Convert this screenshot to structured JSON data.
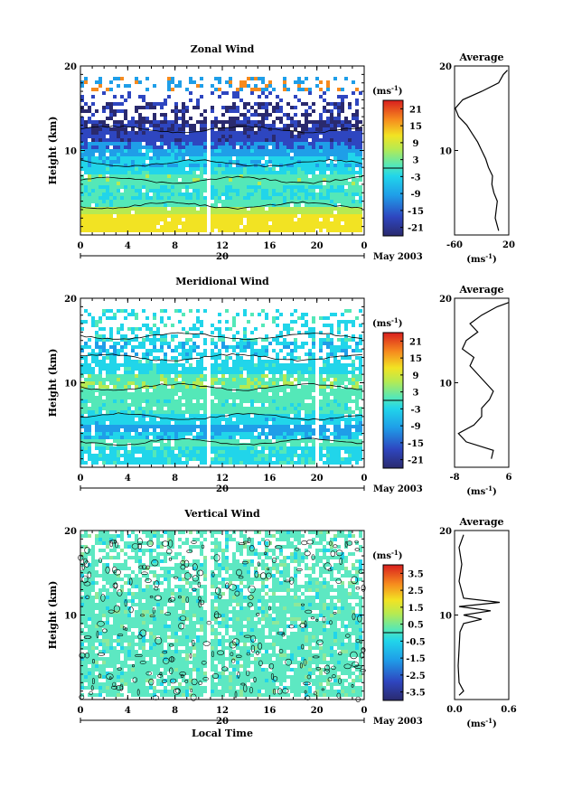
{
  "chart_data": [
    {
      "type": "heatmap",
      "title": "Zonal Wind",
      "ylabel": "Height (km)",
      "ylim": [
        0,
        20
      ],
      "yticks": [
        10,
        20
      ],
      "xlim": [
        0,
        24
      ],
      "xticks": [
        "0",
        "4",
        "8",
        "12",
        "16",
        "20",
        "0"
      ],
      "date_label": "20",
      "month_label": "May 2003",
      "colorbar": {
        "unit_base": "(ms",
        "unit_exp": "-1",
        "unit_close": ")",
        "ticks": [
          "21",
          "15",
          "9",
          "3",
          "-3",
          "-9",
          "-15",
          "-21"
        ]
      },
      "average": {
        "title": "Average",
        "xlim": [
          -60,
          20
        ],
        "xticks": [
          "-60",
          "20"
        ],
        "ylim": [
          0,
          20
        ],
        "yticks": [
          "10",
          "20"
        ],
        "profile": [
          [
            5,
            0.5
          ],
          [
            0,
            2
          ],
          [
            3,
            4
          ],
          [
            -2,
            5
          ],
          [
            -5,
            6
          ],
          [
            -4,
            7
          ],
          [
            -10,
            8
          ],
          [
            -14,
            9
          ],
          [
            -20,
            10
          ],
          [
            -26,
            11
          ],
          [
            -34,
            12
          ],
          [
            -42,
            13
          ],
          [
            -54,
            14
          ],
          [
            -59,
            15
          ],
          [
            -48,
            16
          ],
          [
            -20,
            17
          ],
          [
            5,
            18
          ],
          [
            12,
            19
          ],
          [
            18,
            19.5
          ]
        ]
      }
    },
    {
      "type": "heatmap",
      "title": "Meridional Wind",
      "ylabel": "Height (km)",
      "ylim": [
        0,
        20
      ],
      "yticks": [
        10,
        20
      ],
      "xlim": [
        0,
        24
      ],
      "xticks": [
        "0",
        "4",
        "8",
        "12",
        "16",
        "20",
        "0"
      ],
      "date_label": "20",
      "month_label": "May 2003",
      "colorbar": {
        "unit_base": "(ms",
        "unit_exp": "-1",
        "unit_close": ")",
        "ticks": [
          "21",
          "15",
          "9",
          "3",
          "-3",
          "-9",
          "-15",
          "-21"
        ]
      },
      "average": {
        "title": "Average",
        "xlim": [
          -8,
          6
        ],
        "xticks": [
          "-8",
          "6"
        ],
        "ylim": [
          0,
          20
        ],
        "yticks": [
          "10",
          "20"
        ],
        "profile": [
          [
            1.5,
            1
          ],
          [
            2,
            2
          ],
          [
            -5,
            3
          ],
          [
            -7,
            4
          ],
          [
            -3,
            5
          ],
          [
            -1,
            6
          ],
          [
            -1,
            7
          ],
          [
            1,
            8
          ],
          [
            2,
            9
          ],
          [
            0,
            10
          ],
          [
            -2,
            11
          ],
          [
            -4,
            12
          ],
          [
            -3,
            13
          ],
          [
            -6,
            14
          ],
          [
            -5,
            15
          ],
          [
            -2,
            16
          ],
          [
            -4,
            17
          ],
          [
            -1,
            18
          ],
          [
            3,
            19
          ],
          [
            6,
            19.5
          ]
        ]
      }
    },
    {
      "type": "heatmap",
      "title": "Vertical Wind",
      "ylabel": "Height (km)",
      "xlabel": "Local Time",
      "ylim": [
        0,
        20
      ],
      "yticks": [
        10,
        20
      ],
      "xlim": [
        0,
        24
      ],
      "xticks": [
        "0",
        "4",
        "8",
        "12",
        "16",
        "20",
        "0"
      ],
      "date_label": "20",
      "month_label": "May 2003",
      "colorbar": {
        "unit_base": "(ms",
        "unit_exp": "-1",
        "unit_close": ")",
        "ticks": [
          "3.5",
          "2.5",
          "1.5",
          "0.5",
          "-0.5",
          "-1.5",
          "-2.5",
          "-3.5"
        ]
      },
      "average": {
        "title": "Average",
        "xlim": [
          0,
          0.6
        ],
        "xticks": [
          "0.0",
          "0.6"
        ],
        "ylim": [
          0,
          20
        ],
        "yticks": [
          "10",
          "20"
        ],
        "profile": [
          [
            0.05,
            0.5
          ],
          [
            0.1,
            1
          ],
          [
            0.05,
            2
          ],
          [
            0.04,
            4
          ],
          [
            0.05,
            6
          ],
          [
            0.06,
            8
          ],
          [
            0.1,
            9
          ],
          [
            0.3,
            9.5
          ],
          [
            0.1,
            10
          ],
          [
            0.4,
            10.5
          ],
          [
            0.05,
            11
          ],
          [
            0.5,
            11.5
          ],
          [
            0.1,
            12
          ],
          [
            0.05,
            14
          ],
          [
            0.08,
            16
          ],
          [
            0.05,
            18
          ],
          [
            0.1,
            19.5
          ]
        ]
      }
    }
  ]
}
